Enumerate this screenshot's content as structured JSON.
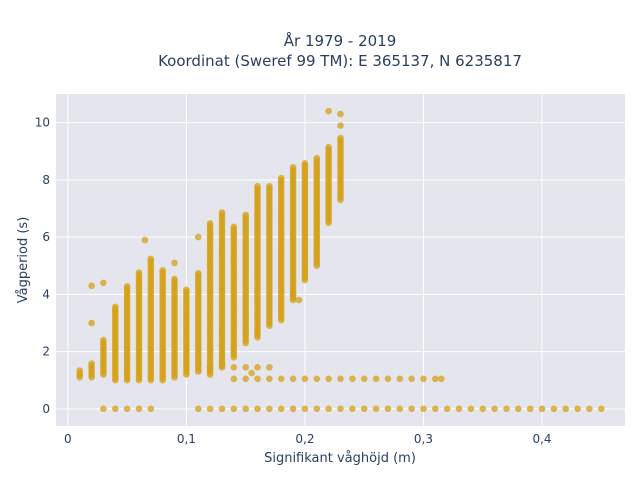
{
  "chart_data": {
    "type": "scatter",
    "title_line1": "År 1979 - 2019",
    "title_line2": "Koordinat (Sweref 99 TM): E 365137, N 6235817",
    "xlabel": "Signifikant våghöjd (m)",
    "ylabel": "Vågperiod (s)",
    "xlim": [
      -0.01,
      0.47
    ],
    "ylim": [
      -0.6,
      11
    ],
    "xticks": [
      0,
      0.1,
      0.2,
      0.3,
      0.4
    ],
    "xtick_labels": [
      "0",
      "0,1",
      "0,2",
      "0,3",
      "0,4"
    ],
    "yticks": [
      0,
      2,
      4,
      6,
      8,
      10
    ],
    "ytick_labels": [
      "0",
      "2",
      "4",
      "6",
      "8",
      "10"
    ],
    "grid": true,
    "marker_color": "#d4a017",
    "series": [
      {
        "columns": [
          {
            "x": 0.01,
            "ymin": 1.1,
            "ymax": 1.4
          },
          {
            "x": 0.02,
            "ymin": 1.1,
            "ymax": 1.6
          },
          {
            "x": 0.03,
            "ymin": 1.2,
            "ymax": 2.4
          },
          {
            "x": 0.04,
            "ymin": 1.0,
            "ymax": 3.6
          },
          {
            "x": 0.05,
            "ymin": 1.0,
            "ymax": 4.3
          },
          {
            "x": 0.06,
            "ymin": 1.0,
            "ymax": 4.8
          },
          {
            "x": 0.07,
            "ymin": 1.0,
            "ymax": 5.3
          },
          {
            "x": 0.08,
            "ymin": 1.0,
            "ymax": 4.9
          },
          {
            "x": 0.09,
            "ymin": 1.1,
            "ymax": 4.6
          },
          {
            "x": 0.1,
            "ymin": 1.2,
            "ymax": 4.2
          },
          {
            "x": 0.11,
            "ymin": 1.3,
            "ymax": 4.8
          },
          {
            "x": 0.12,
            "ymin": 1.2,
            "ymax": 6.5
          },
          {
            "x": 0.13,
            "ymin": 1.5,
            "ymax": 6.9
          },
          {
            "x": 0.14,
            "ymin": 1.8,
            "ymax": 6.4
          },
          {
            "x": 0.15,
            "ymin": 2.3,
            "ymax": 6.8
          },
          {
            "x": 0.16,
            "ymin": 2.5,
            "ymax": 7.8
          },
          {
            "x": 0.17,
            "ymin": 2.9,
            "ymax": 7.8
          },
          {
            "x": 0.18,
            "ymin": 3.1,
            "ymax": 8.1
          },
          {
            "x": 0.19,
            "ymin": 3.8,
            "ymax": 8.5
          },
          {
            "x": 0.2,
            "ymin": 4.5,
            "ymax": 8.6
          },
          {
            "x": 0.21,
            "ymin": 5.0,
            "ymax": 8.8
          },
          {
            "x": 0.22,
            "ymin": 6.5,
            "ymax": 9.2
          },
          {
            "x": 0.23,
            "ymin": 7.3,
            "ymax": 9.5
          }
        ],
        "bands": [
          {
            "y": 1.45,
            "xmin": 0.12,
            "xmax": 0.17,
            "step": 0.01
          },
          {
            "y": 1.05,
            "xmin": 0.14,
            "xmax": 0.31,
            "step": 0.01
          },
          {
            "y": 0.0,
            "xmin": 0.03,
            "xmax": 0.07,
            "step": 0.01
          },
          {
            "y": 0.0,
            "xmin": 0.11,
            "xmax": 0.45,
            "step": 0.01
          }
        ],
        "outliers": [
          {
            "x": 0.02,
            "y": 4.3
          },
          {
            "x": 0.02,
            "y": 3.0
          },
          {
            "x": 0.065,
            "y": 5.9
          },
          {
            "x": 0.11,
            "y": 6.0
          },
          {
            "x": 0.155,
            "y": 1.25
          },
          {
            "x": 0.22,
            "y": 10.4
          },
          {
            "x": 0.23,
            "y": 10.3
          },
          {
            "x": 0.23,
            "y": 9.9
          },
          {
            "x": 0.19,
            "y": 4.0
          },
          {
            "x": 0.195,
            "y": 3.8
          },
          {
            "x": 0.315,
            "y": 1.05
          },
          {
            "x": 0.09,
            "y": 5.1
          },
          {
            "x": 0.03,
            "y": 4.4
          }
        ]
      }
    ]
  }
}
